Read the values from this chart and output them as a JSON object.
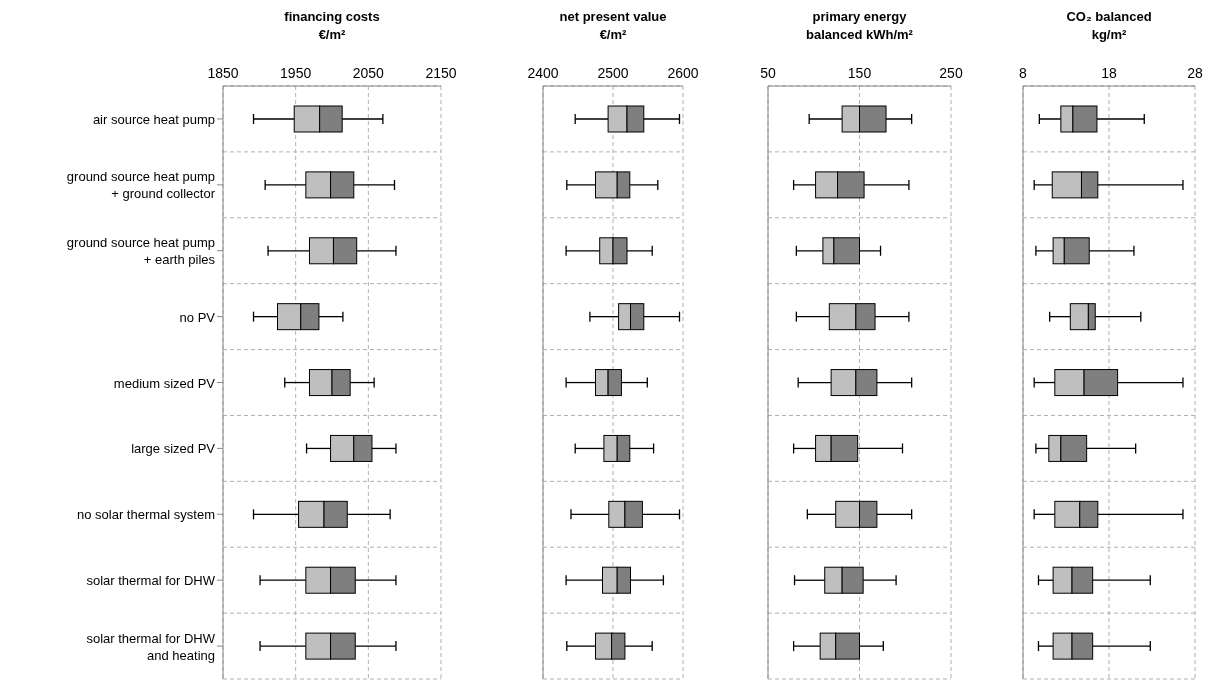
{
  "chart_data": [
    {
      "type": "box",
      "orientation": "horizontal",
      "title": "financing costs €/m²",
      "categories": [
        "air source heat pump",
        "ground source heat pump + ground collector",
        "ground source heat pump + earth piles",
        "no PV",
        "medium sized PV",
        "large sized PV",
        "no solar thermal system",
        "solar thermal for DHW",
        "solar thermal for DHW and heating"
      ],
      "xlim": [
        1850,
        2150
      ],
      "xticks": [
        1850,
        1950,
        2050,
        2150
      ],
      "grid": true,
      "boxes": [
        {
          "low": 1892,
          "q1": 1948,
          "median": 1983,
          "q3": 2014,
          "high": 2070
        },
        {
          "low": 1908,
          "q1": 1964,
          "median": 1998,
          "q3": 2030,
          "high": 2086
        },
        {
          "low": 1912,
          "q1": 1969,
          "median": 2002,
          "q3": 2034,
          "high": 2088
        },
        {
          "low": 1892,
          "q1": 1925,
          "median": 1957,
          "q3": 1982,
          "high": 2015
        },
        {
          "low": 1935,
          "q1": 1969,
          "median": 2000,
          "q3": 2025,
          "high": 2058
        },
        {
          "low": 1965,
          "q1": 1998,
          "median": 2030,
          "q3": 2055,
          "high": 2088
        },
        {
          "low": 1892,
          "q1": 1954,
          "median": 1989,
          "q3": 2021,
          "high": 2080
        },
        {
          "low": 1901,
          "q1": 1964,
          "median": 1998,
          "q3": 2032,
          "high": 2088
        },
        {
          "low": 1901,
          "q1": 1964,
          "median": 1998,
          "q3": 2032,
          "high": 2088
        }
      ]
    },
    {
      "type": "box",
      "orientation": "horizontal",
      "title": "net present value €/m²",
      "xlim": [
        2400,
        2600
      ],
      "xticks": [
        2400,
        2500,
        2600
      ],
      "grid": true,
      "tick_labels": "x",
      "boxes": [
        {
          "low": 2446,
          "q1": 2493,
          "median": 2520,
          "q3": 2544,
          "high": 2595
        },
        {
          "low": 2434,
          "q1": 2475,
          "median": 2506,
          "q3": 2524,
          "high": 2564
        },
        {
          "low": 2433,
          "q1": 2481,
          "median": 2500,
          "q3": 2520,
          "high": 2556
        },
        {
          "low": 2467,
          "q1": 2508,
          "median": 2525,
          "q3": 2544,
          "high": 2595
        },
        {
          "low": 2433,
          "q1": 2475,
          "median": 2493,
          "q3": 2512,
          "high": 2549
        },
        {
          "low": 2446,
          "q1": 2487,
          "median": 2506,
          "q3": 2524,
          "high": 2558
        },
        {
          "low": 2440,
          "q1": 2494,
          "median": 2517,
          "q3": 2542,
          "high": 2595
        },
        {
          "low": 2433,
          "q1": 2485,
          "median": 2506,
          "q3": 2525,
          "high": 2572
        },
        {
          "low": 2434,
          "q1": 2475,
          "median": 2498,
          "q3": 2517,
          "high": 2556
        }
      ]
    },
    {
      "type": "box",
      "orientation": "horizontal",
      "title": "primary energy balanced kWh/m²",
      "xlim": [
        50,
        250
      ],
      "xticks": [
        50,
        150,
        250
      ],
      "grid": true,
      "tick_labels": "x",
      "boxes": [
        {
          "low": 95,
          "q1": 131,
          "median": 150,
          "q3": 179,
          "high": 207
        },
        {
          "low": 78,
          "q1": 102,
          "median": 126,
          "q3": 155,
          "high": 204
        },
        {
          "low": 81,
          "q1": 110,
          "median": 122,
          "q3": 150,
          "high": 173
        },
        {
          "low": 81,
          "q1": 117,
          "median": 146,
          "q3": 167,
          "high": 204
        },
        {
          "low": 83,
          "q1": 119,
          "median": 146,
          "q3": 169,
          "high": 207
        },
        {
          "low": 78,
          "q1": 102,
          "median": 119,
          "q3": 148,
          "high": 197
        },
        {
          "low": 93,
          "q1": 124,
          "median": 150,
          "q3": 169,
          "high": 207
        },
        {
          "low": 79,
          "q1": 112,
          "median": 131,
          "q3": 154,
          "high": 190
        },
        {
          "low": 78,
          "q1": 107,
          "median": 124,
          "q3": 150,
          "high": 176
        }
      ]
    },
    {
      "type": "box",
      "orientation": "horizontal",
      "title": "CO₂ balanced kg/m²",
      "xlim": [
        8,
        28
      ],
      "xticks": [
        8,
        18,
        28
      ],
      "grid": true,
      "tick_labels": "x",
      "boxes": [
        {
          "low": 9.9,
          "q1": 12.4,
          "median": 13.8,
          "q3": 16.6,
          "high": 22.1
        },
        {
          "low": 9.3,
          "q1": 11.4,
          "median": 14.8,
          "q3": 16.7,
          "high": 26.6
        },
        {
          "low": 9.5,
          "q1": 11.5,
          "median": 12.8,
          "q3": 15.7,
          "high": 20.9
        },
        {
          "low": 11.1,
          "q1": 13.5,
          "median": 15.6,
          "q3": 16.4,
          "high": 21.7
        },
        {
          "low": 9.3,
          "q1": 11.7,
          "median": 15.1,
          "q3": 19.0,
          "high": 26.6
        },
        {
          "low": 9.5,
          "q1": 11.0,
          "median": 12.4,
          "q3": 15.4,
          "high": 21.1
        },
        {
          "low": 9.3,
          "q1": 11.7,
          "median": 14.6,
          "q3": 16.7,
          "high": 26.6
        },
        {
          "low": 9.8,
          "q1": 11.5,
          "median": 13.7,
          "q3": 16.1,
          "high": 22.8
        },
        {
          "low": 9.8,
          "q1": 11.5,
          "median": 13.7,
          "q3": 16.1,
          "high": 22.8
        }
      ]
    }
  ]
}
